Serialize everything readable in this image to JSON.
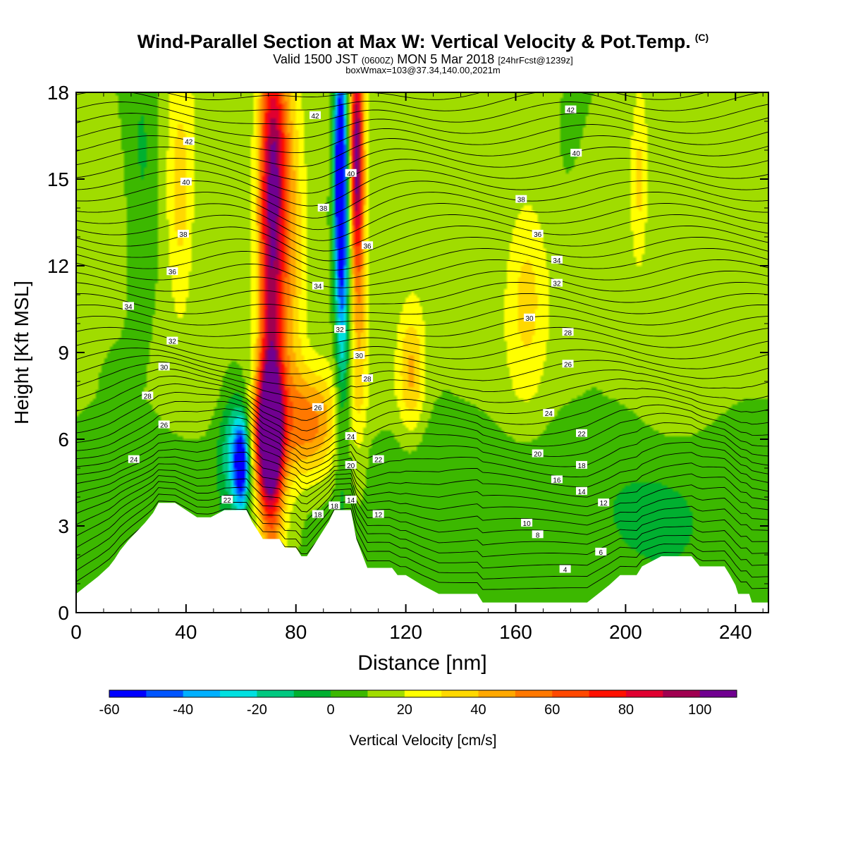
{
  "header": {
    "title": "Wind-Parallel Section at Max W: Vertical Velocity & Pot.Temp.",
    "copyright": "(C)",
    "valid_prefix": "Valid 1500 JST",
    "valid_zulu": "(0600Z)",
    "valid_date": "MON 5 Mar 2018",
    "forecast": "[24hrFcst@1239z]",
    "box_info": "boxWmax=103@37.34,140.00,2021m"
  },
  "chart_data": {
    "type": "heatmap",
    "xlabel": "Distance [nm]",
    "ylabel": "Height [Kft MSL]",
    "xlim": [
      0,
      252
    ],
    "ylim": [
      0,
      18
    ],
    "x_ticks": [
      0,
      40,
      80,
      120,
      160,
      200,
      240
    ],
    "y_ticks": [
      0,
      3,
      6,
      9,
      12,
      15,
      18
    ],
    "colorbar": {
      "label": "Vertical Velocity [cm/s]",
      "range": [
        -60,
        110
      ],
      "tick_values": [
        -60,
        -40,
        -20,
        0,
        20,
        40,
        60,
        80,
        100
      ],
      "colors": [
        "#0000ff",
        "#0055ff",
        "#00b0ff",
        "#00e0e0",
        "#00c880",
        "#00b030",
        "#3cb800",
        "#a0dc00",
        "#ffff00",
        "#ffd800",
        "#ffa800",
        "#ff7800",
        "#ff4800",
        "#ff1000",
        "#e00030",
        "#a00050",
        "#700090"
      ]
    },
    "terrain_kft": [
      [
        0,
        0.65
      ],
      [
        4,
        0.95
      ],
      [
        8,
        1.25
      ],
      [
        12,
        1.6
      ],
      [
        14,
        1.85
      ],
      [
        16,
        2.15
      ],
      [
        19,
        2.5
      ],
      [
        22,
        2.8
      ],
      [
        25,
        3.1
      ],
      [
        28,
        3.45
      ],
      [
        30,
        3.8
      ],
      [
        36,
        3.8
      ],
      [
        40,
        3.55
      ],
      [
        44,
        3.3
      ],
      [
        49,
        3.3
      ],
      [
        54,
        3.55
      ],
      [
        62,
        3.55
      ],
      [
        64,
        3.15
      ],
      [
        66,
        2.85
      ],
      [
        68,
        2.55
      ],
      [
        74,
        2.55
      ],
      [
        76,
        2.25
      ],
      [
        80,
        2.25
      ],
      [
        82,
        1.95
      ],
      [
        84,
        1.95
      ],
      [
        86,
        2.25
      ],
      [
        88,
        2.55
      ],
      [
        90,
        2.85
      ],
      [
        92,
        3.15
      ],
      [
        94,
        3.55
      ],
      [
        100,
        3.55
      ],
      [
        102,
        2.55
      ],
      [
        106,
        1.55
      ],
      [
        115,
        1.55
      ],
      [
        117,
        1.3
      ],
      [
        120,
        1.3
      ],
      [
        126,
        0.95
      ],
      [
        132,
        0.65
      ],
      [
        146,
        0.65
      ],
      [
        148,
        0.35
      ],
      [
        186,
        0.35
      ],
      [
        190,
        0.65
      ],
      [
        194,
        0.95
      ],
      [
        198,
        1.3
      ],
      [
        204,
        1.3
      ],
      [
        206,
        1.6
      ],
      [
        213,
        1.95
      ],
      [
        224,
        1.95
      ],
      [
        227,
        1.6
      ],
      [
        236,
        1.6
      ],
      [
        238,
        1.3
      ],
      [
        240,
        0.95
      ],
      [
        241,
        0.65
      ],
      [
        245,
        0.65
      ],
      [
        246,
        0.35
      ],
      [
        252,
        0.35
      ]
    ],
    "w_field": [
      {
        "x": 70,
        "y": 6.1,
        "w": 105,
        "rx": 5,
        "ry": 2.2
      },
      {
        "x": 71,
        "y": 9.5,
        "w": 70,
        "rx": 4.5,
        "ry": 9
      },
      {
        "x": 72,
        "y": 16,
        "w": 45,
        "rx": 5,
        "ry": 4
      },
      {
        "x": 102,
        "y": 16,
        "w": 75,
        "rx": 2.2,
        "ry": 3.5
      },
      {
        "x": 103,
        "y": 12.5,
        "w": 35,
        "rx": 3,
        "ry": 6
      },
      {
        "x": 85,
        "y": 6.4,
        "w": 45,
        "rx": 10,
        "ry": 1.9
      },
      {
        "x": 78,
        "y": 12,
        "w": 25,
        "rx": 5,
        "ry": 8
      },
      {
        "x": 96,
        "y": 15.5,
        "w": -75,
        "rx": 2.2,
        "ry": 4
      },
      {
        "x": 97,
        "y": 11.5,
        "w": -40,
        "rx": 2.6,
        "ry": 6
      },
      {
        "x": 60,
        "y": 5.1,
        "w": -60,
        "rx": 2.6,
        "ry": 1.5
      },
      {
        "x": 57,
        "y": 5.6,
        "w": -28,
        "rx": 5,
        "ry": 2.1
      },
      {
        "x": 122,
        "y": 8.3,
        "w": 30,
        "rx": 5,
        "ry": 2.2
      },
      {
        "x": 164,
        "y": 11,
        "w": 22,
        "rx": 8,
        "ry": 3.4
      },
      {
        "x": 38,
        "y": 14.5,
        "w": 24,
        "rx": 5,
        "ry": 4
      },
      {
        "x": 24,
        "y": 15.5,
        "w": -14,
        "rx": 6,
        "ry": 5
      },
      {
        "x": 205,
        "y": 15,
        "w": 20,
        "rx": 3,
        "ry": 3
      },
      {
        "x": 210,
        "y": 3.3,
        "w": -14,
        "rx": 14,
        "ry": 1.3
      },
      {
        "x": 180,
        "y": 16,
        "w": -4,
        "rx": 8,
        "ry": 4
      },
      {
        "x": 15,
        "y": 9,
        "w": -2,
        "rx": 10,
        "ry": 5
      },
      {
        "x": 160,
        "y": 7,
        "w": -2,
        "rx": 25,
        "ry": 2
      }
    ],
    "w_background": [
      {
        "y0": 0,
        "y1": 6.5,
        "w": 5
      },
      {
        "y0": 6.5,
        "y1": 18,
        "w": 13
      }
    ],
    "theta_contour_labels": [
      {
        "x": 180,
        "y": 17.4,
        "v": "42"
      },
      {
        "x": 87,
        "y": 17.2,
        "v": "42"
      },
      {
        "x": 41,
        "y": 16.3,
        "v": "42"
      },
      {
        "x": 182,
        "y": 15.9,
        "v": "40"
      },
      {
        "x": 40,
        "y": 14.9,
        "v": "40"
      },
      {
        "x": 100,
        "y": 15.2,
        "v": "40"
      },
      {
        "x": 162,
        "y": 14.3,
        "v": "38"
      },
      {
        "x": 90,
        "y": 14,
        "v": "38"
      },
      {
        "x": 39,
        "y": 13.1,
        "v": "38"
      },
      {
        "x": 168,
        "y": 13.1,
        "v": "36"
      },
      {
        "x": 106,
        "y": 12.7,
        "v": "36"
      },
      {
        "x": 35,
        "y": 11.8,
        "v": "36"
      },
      {
        "x": 175,
        "y": 12.2,
        "v": "34"
      },
      {
        "x": 88,
        "y": 11.3,
        "v": "34"
      },
      {
        "x": 19,
        "y": 10.6,
        "v": "34"
      },
      {
        "x": 175,
        "y": 11.4,
        "v": "32"
      },
      {
        "x": 96,
        "y": 9.8,
        "v": "32"
      },
      {
        "x": 35,
        "y": 9.4,
        "v": "32"
      },
      {
        "x": 165,
        "y": 10.2,
        "v": "30"
      },
      {
        "x": 103,
        "y": 8.9,
        "v": "30"
      },
      {
        "x": 32,
        "y": 8.5,
        "v": "30"
      },
      {
        "x": 179,
        "y": 9.7,
        "v": "28"
      },
      {
        "x": 106,
        "y": 8.1,
        "v": "28"
      },
      {
        "x": 26,
        "y": 7.5,
        "v": "28"
      },
      {
        "x": 179,
        "y": 8.6,
        "v": "26"
      },
      {
        "x": 88,
        "y": 7.1,
        "v": "26"
      },
      {
        "x": 32,
        "y": 6.5,
        "v": "26"
      },
      {
        "x": 172,
        "y": 6.9,
        "v": "24"
      },
      {
        "x": 100,
        "y": 6.1,
        "v": "24"
      },
      {
        "x": 21,
        "y": 5.3,
        "v": "24"
      },
      {
        "x": 184,
        "y": 6.2,
        "v": "22"
      },
      {
        "x": 110,
        "y": 5.3,
        "v": "22"
      },
      {
        "x": 55,
        "y": 3.9,
        "v": "22"
      },
      {
        "x": 168,
        "y": 5.5,
        "v": "20"
      },
      {
        "x": 100,
        "y": 5.1,
        "v": "20"
      },
      {
        "x": 184,
        "y": 5.1,
        "v": "18"
      },
      {
        "x": 88,
        "y": 3.4,
        "v": "18"
      },
      {
        "x": 94,
        "y": 3.7,
        "v": "18"
      },
      {
        "x": 175,
        "y": 4.6,
        "v": "16"
      },
      {
        "x": 184,
        "y": 4.2,
        "v": "14"
      },
      {
        "x": 100,
        "y": 3.9,
        "v": "14"
      },
      {
        "x": 192,
        "y": 3.8,
        "v": "12"
      },
      {
        "x": 110,
        "y": 3.4,
        "v": "12"
      },
      {
        "x": 164,
        "y": 3.1,
        "v": "10"
      },
      {
        "x": 168,
        "y": 2.7,
        "v": "8"
      },
      {
        "x": 191,
        "y": 2.1,
        "v": "6"
      },
      {
        "x": 178,
        "y": 1.5,
        "v": "4"
      }
    ]
  }
}
